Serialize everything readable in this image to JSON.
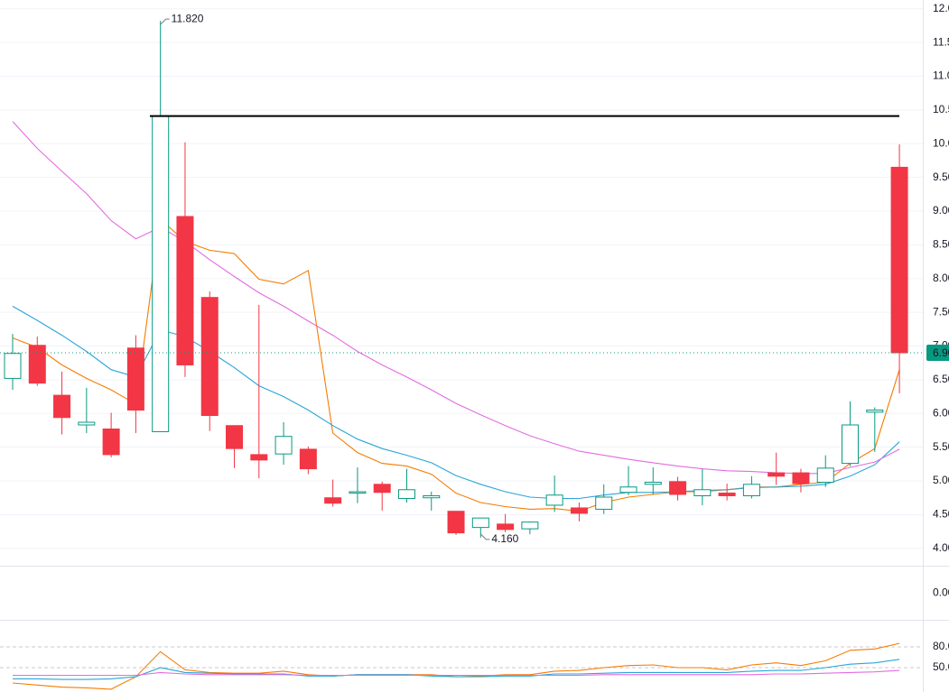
{
  "chart_data": [
    {
      "type": "candlestick",
      "open": [
        6.52,
        7.01,
        6.27,
        5.83,
        5.77,
        6.97,
        5.73,
        8.92,
        7.72,
        5.82,
        5.39,
        5.4,
        5.47,
        4.75,
        4.82,
        4.95,
        4.74,
        4.75,
        4.55,
        4.31,
        4.36,
        4.29,
        4.64,
        4.6,
        4.58,
        4.83,
        4.95,
        4.99,
        4.78,
        4.82,
        4.78,
        5.12,
        5.12,
        4.98,
        5.26,
        6.02,
        9.65
      ],
      "high": [
        7.18,
        7.14,
        6.62,
        6.38,
        6.01,
        7.16,
        11.82,
        10.02,
        7.81,
        5.82,
        7.61,
        5.87,
        5.51,
        5.02,
        5.2,
        4.99,
        5.18,
        4.84,
        4.55,
        4.45,
        4.51,
        4.4,
        5.08,
        4.68,
        4.95,
        5.22,
        5.2,
        5.06,
        5.18,
        4.96,
        5.07,
        5.42,
        5.18,
        5.38,
        6.18,
        6.09,
        9.99
      ],
      "low": [
        6.35,
        6.41,
        5.69,
        5.71,
        5.35,
        5.71,
        5.73,
        6.54,
        5.74,
        5.19,
        5.04,
        5.24,
        5.1,
        4.62,
        4.67,
        4.56,
        4.68,
        4.56,
        4.2,
        4.16,
        4.24,
        4.21,
        4.54,
        4.4,
        4.51,
        4.79,
        4.8,
        4.71,
        4.64,
        4.71,
        4.74,
        4.94,
        4.83,
        4.91,
        5.22,
        5.43,
        6.3
      ],
      "close": [
        6.89,
        6.45,
        5.94,
        5.87,
        5.39,
        6.05,
        10.41,
        6.72,
        5.97,
        5.48,
        5.31,
        5.66,
        5.18,
        4.67,
        4.84,
        4.83,
        4.87,
        4.78,
        4.23,
        4.45,
        4.28,
        4.39,
        4.79,
        4.52,
        4.76,
        4.91,
        4.98,
        4.8,
        4.87,
        4.78,
        4.95,
        5.07,
        4.96,
        5.19,
        5.83,
        6.05,
        6.9
      ],
      "up_color": "#089981",
      "down_color": "#f23645",
      "series": [
        {
          "color": "#f57c00",
          "values": [
            7.12,
            6.98,
            6.72,
            6.52,
            6.35,
            6.14,
            8.88,
            8.55,
            8.42,
            8.37,
            7.99,
            7.92,
            8.12,
            5.71,
            5.42,
            5.26,
            5.22,
            5.1,
            4.82,
            4.68,
            4.62,
            4.58,
            4.59,
            4.55,
            4.68,
            4.76,
            4.8,
            4.84,
            4.84,
            4.87,
            4.91,
            4.91,
            4.95,
            4.98,
            5.26,
            5.48,
            6.65
          ]
        },
        {
          "color": "#2aa5d9",
          "values": [
            7.59,
            7.38,
            7.16,
            6.92,
            6.65,
            6.54,
            7.24,
            7.14,
            6.92,
            6.68,
            6.41,
            6.25,
            6.05,
            5.82,
            5.62,
            5.48,
            5.38,
            5.27,
            5.08,
            4.95,
            4.84,
            4.76,
            4.74,
            4.74,
            4.79,
            4.83,
            4.83,
            4.84,
            4.86,
            4.87,
            4.9,
            4.91,
            4.92,
            4.95,
            5.07,
            5.24,
            5.58
          ]
        },
        {
          "color": "#e36ce0",
          "values": [
            10.33,
            9.93,
            9.59,
            9.26,
            8.86,
            8.59,
            8.76,
            8.55,
            8.28,
            8.03,
            7.79,
            7.59,
            7.37,
            7.16,
            6.92,
            6.72,
            6.54,
            6.35,
            6.15,
            5.98,
            5.82,
            5.67,
            5.55,
            5.44,
            5.38,
            5.32,
            5.27,
            5.22,
            5.18,
            5.15,
            5.14,
            5.12,
            5.11,
            5.11,
            5.2,
            5.28,
            5.47
          ]
        }
      ],
      "hline": 10.41,
      "high_label": "11.820",
      "low_label": "4.160",
      "last_label": "6.900",
      "ylim": [
        3.77,
        12.13
      ],
      "yticks": [
        {
          "value": 4,
          "label": "4.00"
        },
        {
          "value": 4.5,
          "label": "4.50"
        },
        {
          "value": 5,
          "label": "5.00"
        },
        {
          "value": 5.5,
          "label": "5.50"
        },
        {
          "value": 6,
          "label": "6.00"
        },
        {
          "value": 6.5,
          "label": "6.50"
        },
        {
          "value": 7,
          "label": "7.00"
        },
        {
          "value": 7.5,
          "label": "7.50"
        },
        {
          "value": 8,
          "label": "8.00"
        },
        {
          "value": 8.5,
          "label": "8.50"
        },
        {
          "value": 9,
          "label": "9.00"
        },
        {
          "value": 9.5,
          "label": "9.50"
        },
        {
          "value": 10,
          "label": "10.00"
        },
        {
          "value": 10.5,
          "label": "10.50"
        },
        {
          "value": 11,
          "label": "11.00"
        },
        {
          "value": 11.5,
          "label": "11.50"
        },
        {
          "value": 12,
          "label": "12.00"
        }
      ],
      "grid": true
    },
    {
      "type": "volume",
      "ylim": [
        -1,
        1
      ],
      "yticks": [
        {
          "value": 0,
          "label": "0.00"
        }
      ]
    },
    {
      "type": "line",
      "series": [
        {
          "color": "#f57c00",
          "values": [
            28,
            25,
            22,
            21,
            19,
            37,
            73,
            47,
            43,
            42,
            42,
            45,
            40,
            38,
            40,
            40,
            40,
            40,
            37,
            38,
            40,
            40,
            45,
            46,
            50,
            53,
            54,
            50,
            50,
            47,
            54,
            57,
            53,
            60,
            75,
            77,
            85
          ]
        },
        {
          "color": "#2aa5d9",
          "values": [
            34,
            34,
            33,
            33,
            34,
            37,
            50,
            43,
            42,
            41,
            41,
            41,
            38,
            38,
            40,
            40,
            40,
            38,
            37,
            37,
            38,
            38,
            41,
            41,
            42,
            43,
            43,
            43,
            43,
            43,
            45,
            46,
            46,
            50,
            55,
            57,
            62
          ]
        },
        {
          "color": "#e36ce0",
          "values": [
            39,
            39,
            39,
            39,
            39,
            39,
            43,
            41,
            40,
            40,
            40,
            40,
            39,
            39,
            39,
            39,
            39,
            39,
            39,
            39,
            39,
            39,
            39,
            39,
            40,
            40,
            40,
            40,
            40,
            40,
            40,
            41,
            41,
            42,
            43,
            44,
            46
          ]
        }
      ],
      "ylim": [
        15,
        115
      ],
      "yticks": [
        {
          "value": 80,
          "label": "80.00"
        },
        {
          "value": 50,
          "label": "50.00"
        }
      ],
      "grid": true
    }
  ]
}
